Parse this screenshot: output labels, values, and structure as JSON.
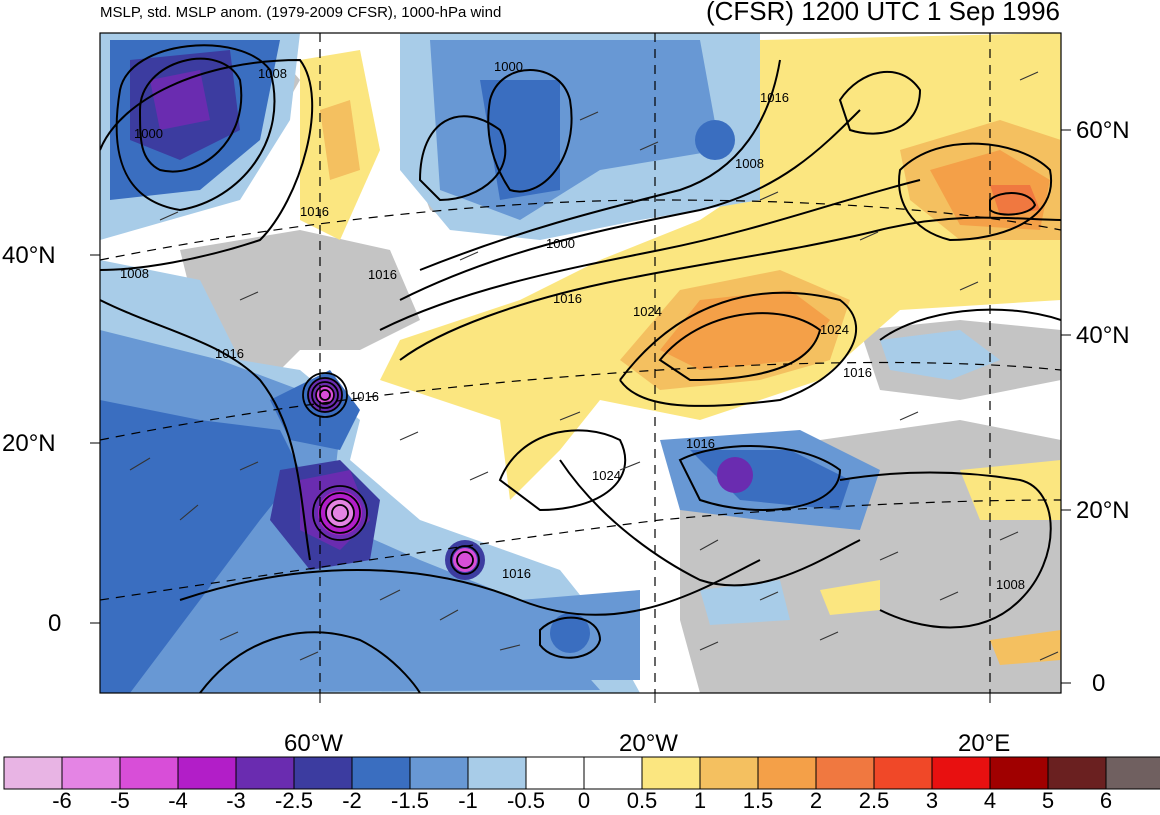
{
  "header": {
    "left_title": "MSLP, std. MSLP anom. (1979-2009 CFSR), 1000-hPa wind",
    "right_title": "(CFSR) 1200 UTC 1 Sep 1996"
  },
  "axes": {
    "lon_labels": [
      "60°W",
      "20°W",
      "20°E"
    ],
    "lat_labels_left": [
      "40°N",
      "20°N",
      "0"
    ],
    "lat_labels_right": [
      "60°N",
      "40°N",
      "20°N",
      "0"
    ]
  },
  "contour_labels": [
    "1008",
    "1000",
    "1000",
    "1016",
    "1008",
    "1000",
    "1016",
    "1008",
    "1016",
    "1016",
    "1016",
    "1016",
    "1024",
    "1024",
    "1016",
    "1016",
    "1024",
    "1016",
    "1008"
  ],
  "colorbar": {
    "labels": [
      "-6",
      "-5",
      "-4",
      "-3",
      "-2.5",
      "-2",
      "-1.5",
      "-1",
      "-0.5",
      "0",
      "0.5",
      "1",
      "1.5",
      "2",
      "2.5",
      "3",
      "4",
      "5",
      "6"
    ],
    "colors": [
      "#e8b4e4",
      "#e484e4",
      "#d84ed8",
      "#b21ec8",
      "#6a2cb0",
      "#3c3ca0",
      "#3a6ec0",
      "#6898d4",
      "#a8cce8",
      "#ffffff",
      "#ffffff",
      "#fbe680",
      "#f4c060",
      "#f4a048",
      "#f07840",
      "#f04828",
      "#e81010",
      "#a00000",
      "#6a2020",
      "#706060"
    ]
  },
  "map": {
    "land_color": "#c4c4c4",
    "ocean_neutral": "#ffffff",
    "highs": [
      "1024",
      "1024",
      "1024"
    ],
    "lows": [
      "1000",
      "1000"
    ]
  }
}
